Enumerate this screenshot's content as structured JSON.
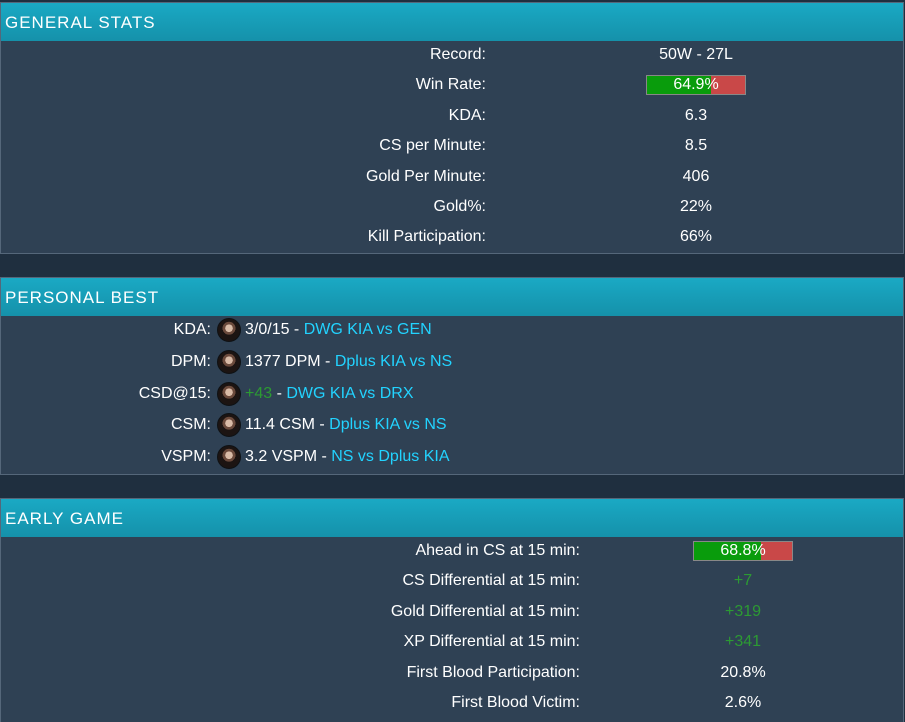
{
  "general": {
    "title": "GENERAL STATS",
    "rows": [
      {
        "label": "Record:",
        "value": "50W - 27L"
      },
      {
        "label": "Win Rate:",
        "value": "64.9%",
        "bar": 0.649
      },
      {
        "label": "KDA:",
        "value": "6.3"
      },
      {
        "label": "CS per Minute:",
        "value": "8.5"
      },
      {
        "label": "Gold Per Minute:",
        "value": "406"
      },
      {
        "label": "Gold%:",
        "value": "22%"
      },
      {
        "label": "Kill Participation:",
        "value": "66%"
      }
    ]
  },
  "personal": {
    "title": "PERSONAL BEST",
    "rows": [
      {
        "label": "KDA:",
        "stat": "3/0/15",
        "sep": " - ",
        "game": "DWG KIA vs GEN"
      },
      {
        "label": "DPM:",
        "stat": "1377 DPM",
        "sep": " - ",
        "game": "Dplus KIA vs NS"
      },
      {
        "label": "CSD@15:",
        "stat": "+43",
        "sep": " - ",
        "game": "DWG KIA vs DRX",
        "stat_green": true
      },
      {
        "label": "CSM:",
        "stat": "11.4 CSM",
        "sep": " - ",
        "game": "Dplus KIA vs NS"
      },
      {
        "label": "VSPM:",
        "stat": "3.2 VSPM",
        "sep": " - ",
        "game": "NS vs Dplus KIA"
      }
    ]
  },
  "early": {
    "title": "EARLY GAME",
    "rows": [
      {
        "label": "Ahead in CS at 15 min:",
        "value": "68.8%",
        "bar": 0.688
      },
      {
        "label": "CS Differential at 15 min:",
        "value": "+7",
        "green": true
      },
      {
        "label": "Gold Differential at 15 min:",
        "value": "+319",
        "green": true
      },
      {
        "label": "XP Differential at 15 min:",
        "value": "+341",
        "green": true
      },
      {
        "label": "First Blood Participation:",
        "value": "20.8%"
      },
      {
        "label": "First Blood Victim:",
        "value": "2.6%"
      }
    ]
  },
  "colors": {
    "accent": "#1aa9c4",
    "panel": "#2f4154",
    "green": "#2c9a33",
    "link": "#22d3ff",
    "bar_fill": "#099c0c",
    "bar_rest": "#c94848"
  }
}
